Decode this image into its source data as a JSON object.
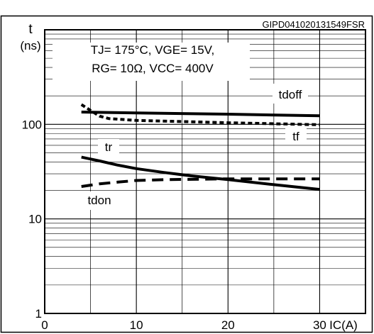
{
  "header": {
    "figure_id": "GIPD041020131549FSR"
  },
  "chart_data": {
    "type": "line",
    "title": "",
    "id_label": "GIPD041020131549FSR",
    "conditions": [
      "TJ= 175°C, VGE= 15V,",
      "RG= 10Ω, VCC= 400V"
    ],
    "ylabel": "t",
    "yunit": "(ns)",
    "xlabel": "IC(A)",
    "x_scale": "linear",
    "y_scale": "log",
    "xlim": [
      0,
      35
    ],
    "ylim": [
      1,
      1000
    ],
    "x_ticks": [
      0,
      10,
      20,
      30
    ],
    "y_ticks": [
      1,
      10,
      100
    ],
    "grid": true,
    "series": [
      {
        "name": "tdoff",
        "style": "solid",
        "x": [
          4,
          10,
          20,
          30
        ],
        "y": [
          135,
          132,
          128,
          123
        ]
      },
      {
        "name": "tf",
        "style": "dotted",
        "x": [
          4,
          5,
          6,
          7,
          10,
          20,
          30
        ],
        "y": [
          162,
          140,
          122,
          115,
          110,
          104,
          99
        ]
      },
      {
        "name": "tr",
        "style": "solid",
        "x": [
          4,
          6,
          8,
          10,
          13,
          16,
          20,
          25,
          30
        ],
        "y": [
          45,
          41,
          37,
          34,
          31,
          28.5,
          26,
          23,
          20.5
        ]
      },
      {
        "name": "tdon",
        "style": "dashed",
        "x": [
          4,
          6,
          8,
          10,
          13,
          16,
          20,
          25,
          30
        ],
        "y": [
          22,
          23.5,
          24.5,
          25.5,
          26,
          26.2,
          26.5,
          26.5,
          26.5
        ]
      }
    ]
  }
}
